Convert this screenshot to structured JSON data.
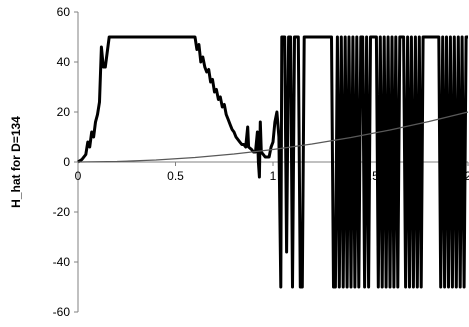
{
  "chart_data": {
    "type": "line",
    "title": "",
    "xlabel": "",
    "ylabel": "H_hat for D=134",
    "xlim": [
      0,
      2
    ],
    "ylim": [
      -60,
      60
    ],
    "x_ticks": [
      "0",
      "0.5",
      "1",
      "1.5",
      "2"
    ],
    "y_ticks": [
      "60",
      "40",
      "20",
      "0",
      "-20",
      "-40",
      "-60"
    ],
    "grid": false,
    "legend": "none",
    "series": [
      {
        "style": "thick",
        "color": "#000000",
        "points": [
          [
            0.0,
            0
          ],
          [
            0.02,
            1
          ],
          [
            0.04,
            3
          ],
          [
            0.05,
            8
          ],
          [
            0.06,
            6
          ],
          [
            0.07,
            12
          ],
          [
            0.08,
            10
          ],
          [
            0.09,
            16
          ],
          [
            0.1,
            19
          ],
          [
            0.11,
            24
          ],
          [
            0.12,
            46
          ],
          [
            0.13,
            38
          ],
          [
            0.14,
            38
          ],
          [
            0.16,
            50
          ],
          [
            0.25,
            50
          ],
          [
            0.4,
            50
          ],
          [
            0.55,
            50
          ],
          [
            0.6,
            50
          ],
          [
            0.61,
            45
          ],
          [
            0.62,
            47
          ],
          [
            0.63,
            40
          ],
          [
            0.64,
            42
          ],
          [
            0.65,
            38
          ],
          [
            0.66,
            36
          ],
          [
            0.67,
            37
          ],
          [
            0.68,
            32
          ],
          [
            0.69,
            33
          ],
          [
            0.7,
            28
          ],
          [
            0.71,
            29
          ],
          [
            0.72,
            25
          ],
          [
            0.73,
            26
          ],
          [
            0.74,
            22
          ],
          [
            0.75,
            23
          ],
          [
            0.76,
            19
          ],
          [
            0.77,
            17
          ],
          [
            0.78,
            15
          ],
          [
            0.79,
            13
          ],
          [
            0.8,
            12
          ],
          [
            0.81,
            10
          ],
          [
            0.82,
            9
          ],
          [
            0.83,
            8
          ],
          [
            0.84,
            7
          ],
          [
            0.85,
            7
          ],
          [
            0.86,
            6
          ],
          [
            0.87,
            14
          ],
          [
            0.875,
            6
          ],
          [
            0.89,
            5
          ],
          [
            0.9,
            4
          ],
          [
            0.91,
            4
          ],
          [
            0.92,
            12
          ],
          [
            0.925,
            0
          ],
          [
            0.93,
            -6
          ],
          [
            0.935,
            16
          ],
          [
            0.94,
            4
          ],
          [
            0.95,
            3
          ],
          [
            0.96,
            2
          ],
          [
            0.97,
            2
          ],
          [
            0.98,
            2
          ],
          [
            0.99,
            6
          ],
          [
            1.0,
            8
          ],
          [
            1.01,
            16
          ],
          [
            1.02,
            20
          ],
          [
            1.03,
            10
          ],
          [
            1.04,
            -50
          ],
          [
            1.045,
            50
          ],
          [
            1.06,
            50
          ],
          [
            1.07,
            -36
          ],
          [
            1.08,
            50
          ],
          [
            1.09,
            50
          ],
          [
            1.1,
            -50
          ],
          [
            1.11,
            50
          ],
          [
            1.13,
            50
          ],
          [
            1.14,
            -50
          ],
          [
            1.15,
            -50
          ],
          [
            1.16,
            50
          ],
          [
            1.3,
            50
          ],
          [
            1.31,
            -50
          ],
          [
            1.32,
            -50
          ],
          [
            1.33,
            50
          ],
          [
            1.34,
            -50
          ],
          [
            1.35,
            50
          ],
          [
            1.36,
            -50
          ],
          [
            1.37,
            50
          ],
          [
            1.38,
            -50
          ],
          [
            1.39,
            50
          ],
          [
            1.4,
            -50
          ],
          [
            1.41,
            50
          ],
          [
            1.42,
            -50
          ],
          [
            1.43,
            50
          ],
          [
            1.44,
            -50
          ],
          [
            1.45,
            50
          ],
          [
            1.46,
            50
          ],
          [
            1.47,
            -50
          ],
          [
            1.48,
            50
          ],
          [
            1.49,
            -50
          ],
          [
            1.5,
            50
          ],
          [
            1.53,
            50
          ],
          [
            1.54,
            -50
          ],
          [
            1.55,
            50
          ],
          [
            1.56,
            -50
          ],
          [
            1.57,
            50
          ],
          [
            1.58,
            -50
          ],
          [
            1.59,
            50
          ],
          [
            1.6,
            -50
          ],
          [
            1.61,
            50
          ],
          [
            1.62,
            -50
          ],
          [
            1.63,
            50
          ],
          [
            1.64,
            -50
          ],
          [
            1.65,
            50
          ],
          [
            1.67,
            50
          ],
          [
            1.68,
            -50
          ],
          [
            1.69,
            50
          ],
          [
            1.7,
            -50
          ],
          [
            1.71,
            50
          ],
          [
            1.72,
            -50
          ],
          [
            1.73,
            50
          ],
          [
            1.74,
            -50
          ],
          [
            1.75,
            50
          ],
          [
            1.76,
            -50
          ],
          [
            1.77,
            50
          ],
          [
            1.78,
            50
          ],
          [
            1.85,
            50
          ],
          [
            1.86,
            -50
          ],
          [
            1.87,
            50
          ],
          [
            1.88,
            -50
          ],
          [
            1.89,
            50
          ],
          [
            1.9,
            -50
          ],
          [
            1.91,
            50
          ],
          [
            1.92,
            -50
          ],
          [
            1.93,
            50
          ],
          [
            1.94,
            -50
          ],
          [
            1.95,
            50
          ],
          [
            1.96,
            -50
          ],
          [
            1.97,
            50
          ],
          [
            1.98,
            -50
          ],
          [
            1.99,
            50
          ],
          [
            2.0,
            50
          ]
        ]
      },
      {
        "style": "thin",
        "color": "#595959",
        "points": [
          [
            0.0,
            0
          ],
          [
            0.2,
            0.2
          ],
          [
            0.4,
            0.8
          ],
          [
            0.6,
            1.8
          ],
          [
            0.8,
            3.2
          ],
          [
            1.0,
            5.0
          ],
          [
            1.2,
            7.2
          ],
          [
            1.4,
            9.8
          ],
          [
            1.6,
            12.8
          ],
          [
            1.8,
            16.2
          ],
          [
            2.0,
            20.0
          ]
        ]
      }
    ]
  }
}
